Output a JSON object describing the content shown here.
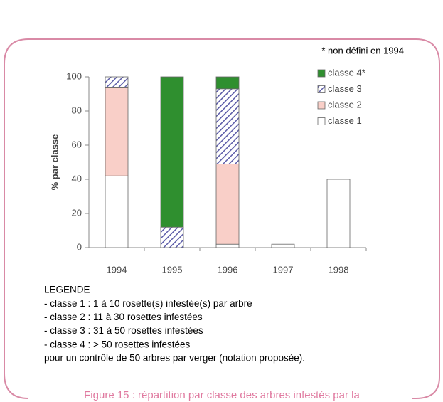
{
  "note": "* non défini en 1994",
  "legend_text": [
    "LEGENDE",
    "- classe 1 : 1 à 10 rosette(s) infestée(s) par arbre",
    "- classe 2 : 11 à 30 rosettes infestées",
    "- classe 3 : 31 à 50 rosettes infestées",
    "- classe 4 : > 50 rosettes infestées",
    "pour un contrôle de 50 arbres par verger (notation proposée)."
  ],
  "caption": "Figure 15 : répartition par classe des arbres infestés par la",
  "chart_data": {
    "type": "stacked_bar",
    "y_label": "% par classe",
    "categories": [
      "1994",
      "1995",
      "1996",
      "1997",
      "1998"
    ],
    "series": [
      {
        "name": "classe 1",
        "color": "#ffffff",
        "values": [
          42,
          0,
          2,
          2,
          40
        ]
      },
      {
        "name": "classe 2",
        "color": "#f9cfc8",
        "values": [
          52,
          0,
          47,
          0,
          0
        ]
      },
      {
        "name": "classe 3",
        "color": "#5c5ca8",
        "hatch": true,
        "values": [
          6,
          12,
          44,
          0,
          0
        ]
      },
      {
        "name": "classe 4*",
        "color": "#2f8f2f",
        "values": [
          0,
          88,
          7,
          0,
          0
        ]
      }
    ],
    "ylim": [
      0,
      100
    ],
    "yticks": [
      0,
      20,
      40,
      60,
      80,
      100
    ],
    "legend": "right"
  }
}
